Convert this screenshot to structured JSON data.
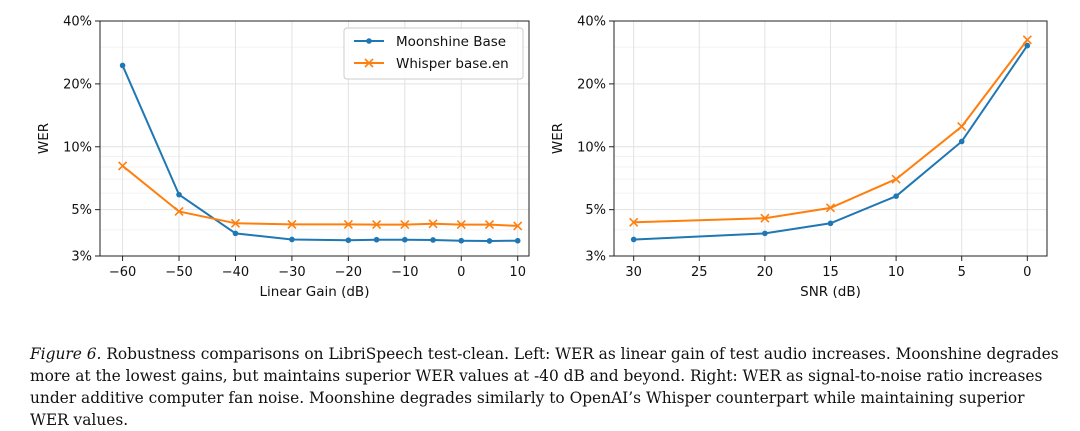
{
  "colors": {
    "moonshine": "#1f77b4",
    "whisper": "#ff7f0e",
    "grid": "#e2e2e2",
    "axis": "#222222"
  },
  "chart_data": [
    {
      "type": "line",
      "xlabel": "Linear Gain (dB)",
      "ylabel": "WER",
      "y_scale": "log",
      "ylim": [
        3,
        40
      ],
      "xlim": [
        -64,
        12
      ],
      "x_ticks": [
        -60,
        -50,
        -40,
        -30,
        -20,
        -10,
        0,
        10
      ],
      "x_tick_labels": [
        "−60",
        "−50",
        "−40",
        "−30",
        "−20",
        "−10",
        "0",
        "10"
      ],
      "y_ticks": [
        3,
        5,
        10,
        20,
        40
      ],
      "y_tick_labels": [
        "3%",
        "5%",
        "10%",
        "20%",
        "40%"
      ],
      "grid": true,
      "legend": "top-right",
      "series": [
        {
          "name": "Moonshine Base",
          "color": "#1f77b4",
          "marker": "dot",
          "x": [
            -60,
            -50,
            -40,
            -30,
            -20,
            -15,
            -10,
            -5,
            0,
            5,
            10
          ],
          "y": [
            24.5,
            5.9,
            3.85,
            3.6,
            3.57,
            3.59,
            3.59,
            3.58,
            3.55,
            3.54,
            3.55
          ]
        },
        {
          "name": "Whisper base.en",
          "color": "#ff7f0e",
          "marker": "x",
          "x": [
            -60,
            -50,
            -40,
            -30,
            -20,
            -15,
            -10,
            -5,
            0,
            5,
            10
          ],
          "y": [
            8.1,
            4.9,
            4.3,
            4.25,
            4.25,
            4.24,
            4.24,
            4.28,
            4.24,
            4.24,
            4.18
          ]
        }
      ]
    },
    {
      "type": "line",
      "xlabel": "SNR (dB)",
      "ylabel": "WER",
      "y_scale": "log",
      "ylim": [
        3,
        40
      ],
      "xlim": [
        31.5,
        -1.5
      ],
      "x_ticks": [
        30,
        25,
        20,
        15,
        10,
        5,
        0
      ],
      "x_tick_labels": [
        "30",
        "25",
        "20",
        "15",
        "10",
        "5",
        "0"
      ],
      "y_ticks": [
        3,
        5,
        10,
        20,
        40
      ],
      "y_tick_labels": [
        "3%",
        "5%",
        "10%",
        "20%",
        "40%"
      ],
      "grid": true,
      "series": [
        {
          "name": "Moonshine Base",
          "color": "#1f77b4",
          "marker": "dot",
          "x": [
            30,
            20,
            15,
            10,
            5,
            0
          ],
          "y": [
            3.6,
            3.85,
            4.3,
            5.8,
            10.6,
            30.5
          ]
        },
        {
          "name": "Whisper base.en",
          "color": "#ff7f0e",
          "marker": "x",
          "x": [
            30,
            20,
            15,
            10,
            5,
            0
          ],
          "y": [
            4.35,
            4.55,
            5.1,
            7.0,
            12.5,
            32.5
          ]
        }
      ]
    }
  ],
  "caption": {
    "label": "Figure 6.",
    "text": " Robustness comparisons on LibriSpeech test-clean. Left: WER as linear gain of test audio increases. Moonshine degrades more at the lowest gains, but maintains superior WER values at -40 dB and beyond. Right: WER as signal-to-noise ratio increases under additive computer fan noise. Moonshine degrades similarly to OpenAI’s Whisper counterpart while maintaining superior WER values."
  }
}
